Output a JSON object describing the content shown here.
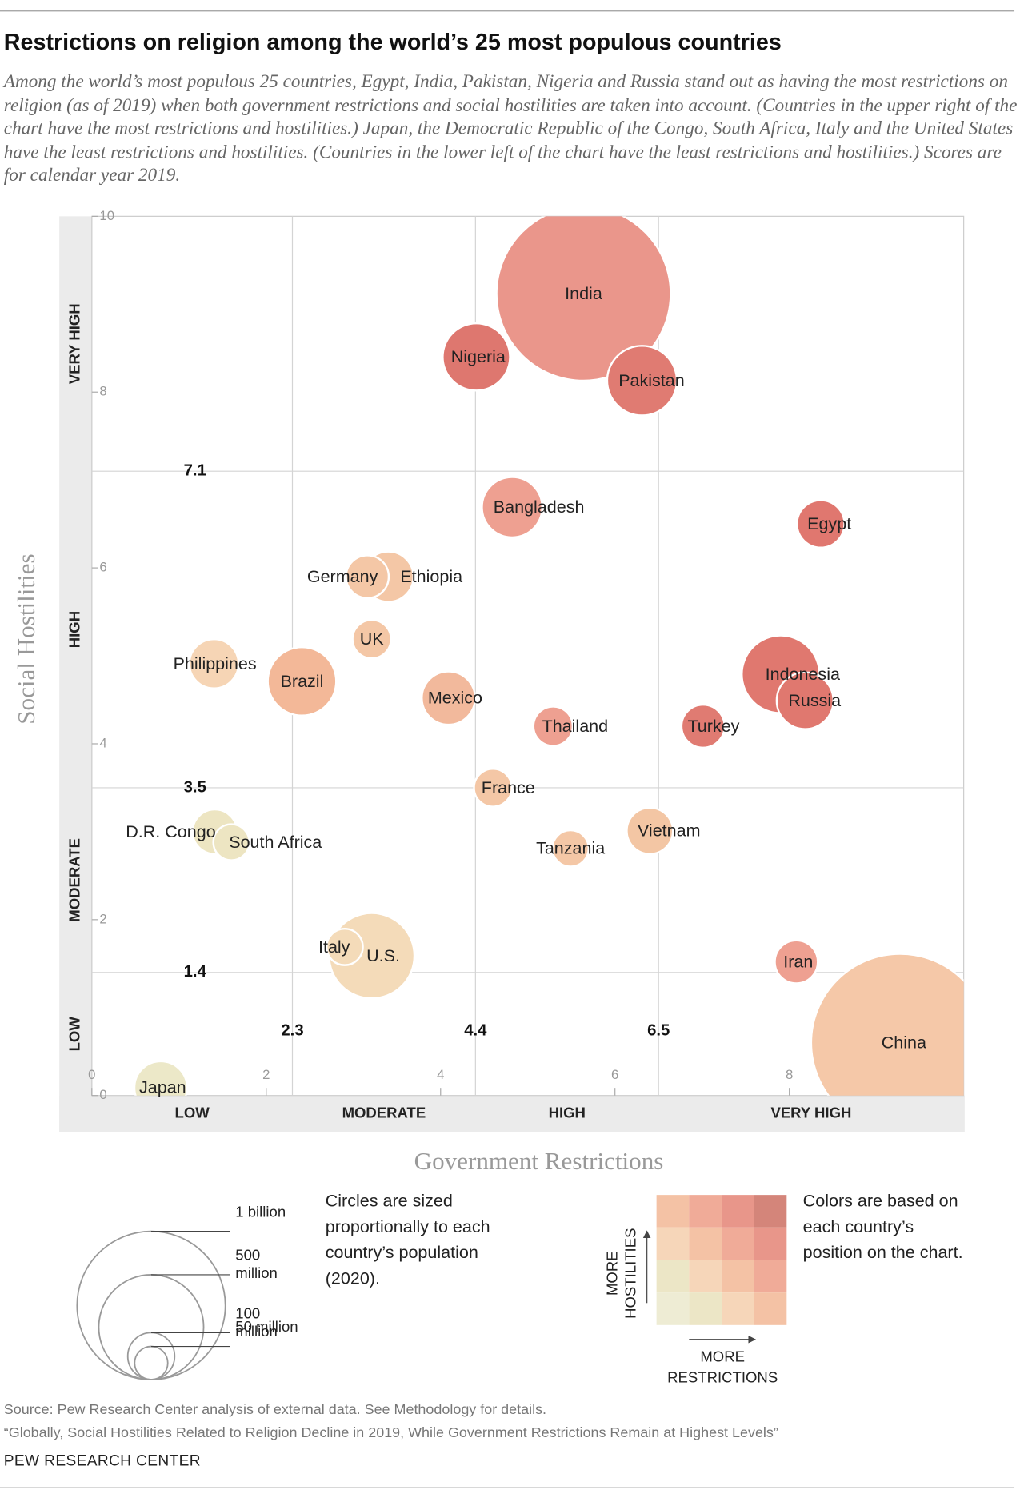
{
  "chart_data": {
    "type": "bubble",
    "title": "Restrictions on religion among the world’s 25 most populous countries",
    "subtitle": "Among the world’s most populous 25 countries, Egypt, India, Pakistan, Nigeria and Russia stand out as having the most restrictions on religion (as of 2019) when both government restrictions and social hostilities are taken into account. (Countries in the upper right of the chart have the most restrictions and hostilities.) Japan, the Democratic Republic of the Congo, South Africa, Italy and the United States have the least restrictions and hostilities. (Countries in the lower left of the chart have the least restrictions and hostilities.) Scores are for calendar year 2019.",
    "x_label": "Government Restrictions",
    "y_label": "Social Hostilities",
    "xlim": [
      0,
      10
    ],
    "ylim": [
      0,
      10
    ],
    "xticks": [
      0,
      2,
      4,
      6,
      8
    ],
    "yticks": [
      0,
      2,
      4,
      6,
      8,
      10
    ],
    "x_thresholds": [
      2.3,
      4.4,
      6.5
    ],
    "y_thresholds": [
      1.4,
      3.5,
      7.1
    ],
    "x_bands": [
      "LOW",
      "MODERATE",
      "HIGH",
      "VERY HIGH"
    ],
    "y_bands": [
      "LOW",
      "MODERATE",
      "HIGH",
      "VERY HIGH"
    ],
    "categories": [
      "India",
      "China",
      "U.S.",
      "Italy",
      "Indonesia",
      "Russia",
      "Pakistan",
      "Nigeria",
      "Brazil",
      "Bangladesh",
      "Egypt",
      "Mexico",
      "Japan",
      "Ethiopia",
      "Germany",
      "UK",
      "Philippines",
      "Thailand",
      "Turkey",
      "France",
      "D.R. Congo",
      "South Africa",
      "Tanzania",
      "Vietnam",
      "Iran"
    ],
    "x": [
      5.64,
      9.27,
      3.21,
      2.9,
      7.9,
      8.18,
      6.31,
      4.41,
      2.41,
      4.82,
      8.36,
      4.09,
      0.79,
      3.4,
      3.16,
      3.21,
      1.4,
      5.29,
      7.01,
      4.6,
      1.41,
      1.6,
      5.49,
      6.4,
      8.08
    ],
    "values": [
      9.12,
      0.6,
      1.59,
      1.69,
      4.79,
      4.49,
      8.13,
      8.4,
      4.71,
      6.69,
      6.5,
      4.52,
      0.09,
      5.9,
      5.9,
      5.19,
      4.91,
      4.2,
      4.2,
      3.5,
      3.0,
      2.88,
      2.81,
      3.01,
      1.52
    ],
    "sizes": [
      1380,
      1439,
      331,
      60,
      274,
      146,
      221,
      206,
      213,
      165,
      102,
      129,
      126,
      115,
      83,
      67,
      110,
      70,
      84,
      65,
      90,
      59,
      60,
      97,
      84
    ],
    "colors": [
      "#ea968b",
      "#f5c8a8",
      "#f4dbb9",
      "#f4dbb9",
      "#e0786f",
      "#e0786f",
      "#e07b72",
      "#de776f",
      "#f3b898",
      "#eea091",
      "#e0776f",
      "#f2b99c",
      "#ece8c8",
      "#f4c7a6",
      "#f4c7a6",
      "#f4c7a6",
      "#f6d5b5",
      "#eea091",
      "#e07b72",
      "#f4c7a6",
      "#ede5c2",
      "#ede5c2",
      "#f4c7a6",
      "#f3c6a4",
      "#eea091"
    ],
    "size_legend": {
      "text": "Circles are sized proportionally to each country’s population (2020).",
      "sizes": [
        {
          "value": 1000,
          "label": "1 billion"
        },
        {
          "value": 500,
          "label": "500 million"
        },
        {
          "value": 100,
          "label": "100 million"
        },
        {
          "value": 50,
          "label": "50 million"
        }
      ]
    },
    "color_legend": {
      "text": "Colors are based on each country’s position on the chart.",
      "y_label": "MORE HOSTILITIES",
      "x_label": "MORE RESTRICTIONS"
    },
    "source": "Source: Pew Research Center analysis of external data. See Methodology for details.",
    "footnote": "“Globally, Social Hostilities Related to Religion Decline in 2019, While Government Restrictions Remain at Highest Levels”",
    "credit": "PEW RESEARCH CENTER"
  }
}
